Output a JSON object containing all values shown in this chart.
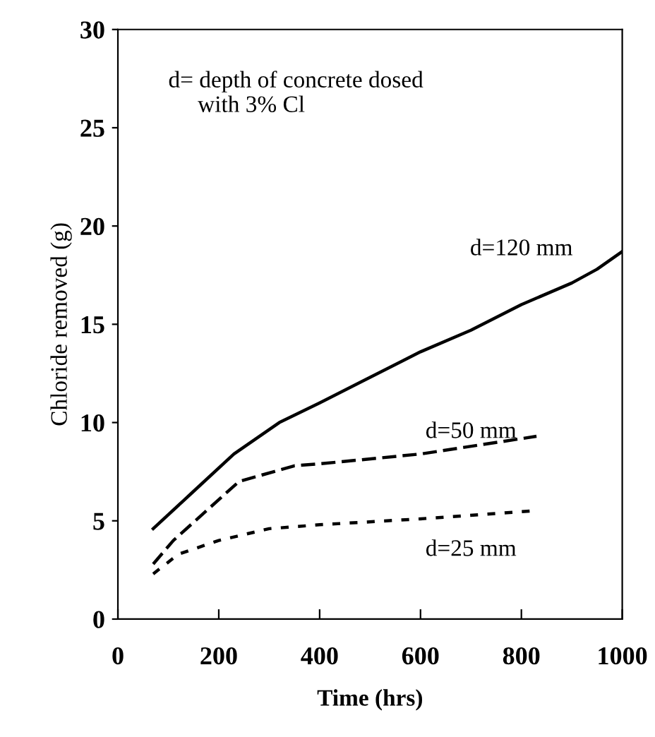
{
  "chart_data": {
    "type": "line",
    "xlabel": "Time (hrs)",
    "ylabel": "Chloride removed (g)",
    "xlim": [
      0,
      1000
    ],
    "ylim": [
      0,
      30
    ],
    "xticks": [
      0,
      200,
      400,
      600,
      800,
      1000
    ],
    "yticks": [
      0,
      5,
      10,
      15,
      20,
      25,
      30
    ],
    "grid": false,
    "legend": false,
    "series": [
      {
        "color": "#000000",
        "line_style": "solid",
        "x": [
          70,
          150,
          230,
          320,
          400,
          500,
          600,
          700,
          800,
          900,
          950,
          1000
        ],
        "values": [
          4.6,
          6.5,
          8.4,
          10,
          11,
          12.3,
          13.6,
          14.7,
          16,
          17.1,
          17.8,
          18.7
        ]
      },
      {
        "color": "#000000",
        "line_style": "dashed",
        "x": [
          70,
          110,
          240,
          350,
          400,
          600,
          830
        ],
        "values": [
          2.8,
          4,
          7,
          7.8,
          7.9,
          8.4,
          9.3
        ]
      },
      {
        "color": "#000000",
        "line_style": "dotted",
        "x": [
          70,
          120,
          200,
          300,
          400,
          600,
          820
        ],
        "values": [
          2.3,
          3.3,
          4,
          4.6,
          4.8,
          5.1,
          5.5
        ]
      }
    ],
    "annotations": [
      "d= depth of concrete dosed\n     with 3% Cl",
      "d=120 mm",
      "d=50 mm",
      "d=25 mm"
    ]
  }
}
